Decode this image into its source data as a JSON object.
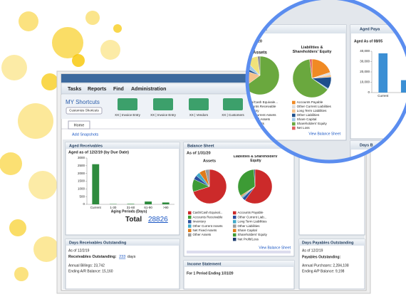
{
  "menu": [
    "Tasks",
    "Reports",
    "Find",
    "Administration"
  ],
  "shortcuts": {
    "title": "MY Shortcuts",
    "customize": "Customize Shortcuts",
    "items": [
      "XX | Invoice Entry",
      "XX | Invoice Entry",
      "XX | Vendors",
      "XX | Customers"
    ]
  },
  "tab": "Home",
  "add_snapshots": "Add Snapshots",
  "aged_receivables": {
    "header": "Aged Receivables",
    "total_label": "Total",
    "total": 28826
  },
  "balance_sheet": {
    "header": "Balance Sheet",
    "as_of": "As of 1/31/20",
    "link": "View Balance Sheet"
  },
  "days_receivables": {
    "header": "Days Receivables Outstanding",
    "as_of": "As of 12/2/19",
    "outstanding_label": "Receivables Outstanding:",
    "outstanding_value": 233,
    "outstanding_unit": "days",
    "annual": "Annual Billings: 23,742",
    "ending": "Ending A/R Balance: 15,160"
  },
  "income_statement": {
    "header": "Income Statement",
    "period": "For 1 Period Ending 1/31/20"
  },
  "days_payables": {
    "header": "Days Payables Outstanding",
    "as_of": "As of 12/2/19",
    "outstanding_label": "Payables Outstanding:",
    "annual": "Annual Purchases: 2,284,108",
    "ending": "Ending A/P Balance: 9,198"
  },
  "zoom": {
    "sheet_header": "Sheet",
    "sheet_date": "30/2020",
    "link": "View Balance Sheet",
    "payables_header": "Aged Paya",
    "payables_as_of": "Aged As of 08/05",
    "days_header": "Days B"
  },
  "chart_data": [
    {
      "type": "bar",
      "title": "Aged as of 12/2/19 (by Due Date)",
      "x_label": "Aging Periods (Days)",
      "categories": [
        "Current",
        "1-30",
        "31-60",
        "61-90",
        ">90"
      ],
      "values": [
        2600,
        20,
        30,
        180,
        120
      ],
      "color": "#2e8b3e",
      "ylim": [
        0,
        3000
      ],
      "yticks": [
        0,
        500,
        1000,
        1500,
        2000,
        2500,
        3000
      ]
    },
    {
      "type": "pie",
      "title": "Assets",
      "categories": [
        "Cash/Cash Equival...",
        "Accounts Receivable",
        "Inventory",
        "Other Current Assets",
        "Net Fixed Assets",
        "Other Assets"
      ],
      "values": [
        70,
        12,
        4,
        4,
        6,
        4
      ],
      "colors": [
        "#cc2a2a",
        "#3d9b35",
        "#2b4f9e",
        "#3fa9c9",
        "#e07b1a",
        "#9b9b9b"
      ]
    },
    {
      "type": "pie",
      "title": "Liabilities & Shareholders' Equity",
      "categories": [
        "Accounts Payable",
        "Other Current Liab...",
        "Long Term Liabilities",
        "Other Liabilities",
        "Share Capital",
        "Shareholders' Equity",
        "Net Profit/Loss"
      ],
      "values": [
        60,
        3,
        1,
        1,
        1,
        33,
        1
      ],
      "colors": [
        "#cc2a2a",
        "#2b4f9e",
        "#3fa9c9",
        "#9b9b9b",
        "#e07b1a",
        "#3d9b35",
        "#1d3b6e"
      ]
    },
    {
      "type": "bar",
      "categories": [
        "Current",
        null
      ],
      "values": [
        38000,
        12000
      ],
      "color": "#3b8fd4",
      "ylim": [
        0,
        40000
      ],
      "yticks": [
        0,
        {
          "value": 10000,
          "label": "10,000"
        },
        {
          "value": 20000,
          "label": "20,000"
        },
        {
          "value": 30000,
          "label": "30,000"
        },
        {
          "value": 40000,
          "label": "40,000"
        }
      ]
    },
    {
      "type": "pie",
      "title": "Assets",
      "categories": [
        "Cash/Cash Equivale...",
        "Accounts Receivable",
        "Inventory",
        "Other Current Assets",
        "Net Fixed Assets",
        "Other Assets"
      ],
      "values": [
        65,
        15,
        3,
        5,
        10,
        2
      ],
      "colors": [
        "#6aa83e",
        "#f5c28a",
        "#1d4f8c",
        "#9ec8e8",
        "#f0e27a",
        "#888888"
      ]
    },
    {
      "type": "pie",
      "title": "Liabilities & Shareholders' Equity",
      "categories": [
        "Accounts Payable",
        "Other Current Liabilities",
        "Long Term Liabilities",
        "Other Liabilities",
        "Share Capital",
        "Shareholders' Equity",
        "Net Loss"
      ],
      "values": [
        20,
        2,
        2,
        10,
        1,
        63,
        2
      ],
      "colors": [
        "#f08a24",
        "#dddddd",
        "#f5c28a",
        "#1d4f8c",
        "#9ec8e8",
        "#6aa83e",
        "#e06060"
      ]
    }
  ]
}
